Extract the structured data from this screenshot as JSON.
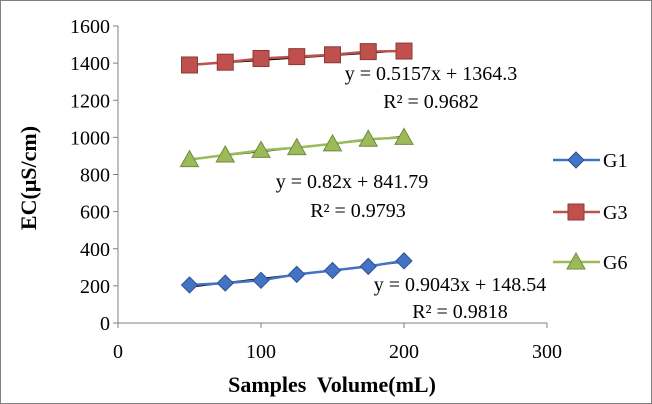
{
  "chart_data": {
    "type": "scatter",
    "xlabel": "Samples  Volume(mL)",
    "ylabel": "EC(μS/cm)",
    "xlim": [
      0,
      300
    ],
    "ylim": [
      0,
      1600
    ],
    "x_ticks": [
      0,
      100,
      200,
      300
    ],
    "y_ticks": [
      0,
      200,
      400,
      600,
      800,
      1000,
      1200,
      1400,
      1600
    ],
    "grid": false,
    "legend_position": "right",
    "series": [
      {
        "name": "G1",
        "color": "#4472C4",
        "marker": "diamond",
        "x": [
          50,
          75,
          100,
          125,
          150,
          175,
          200
        ],
        "y": [
          205,
          215,
          230,
          262,
          283,
          305,
          335
        ],
        "trendline": {
          "slope": 0.9043,
          "intercept": 148.54,
          "x_range": [
            50,
            200
          ]
        },
        "equation": "y = 0.9043x + 148.54",
        "r2": "R² = 0.9818"
      },
      {
        "name": "G3",
        "color": "#C0504D",
        "marker": "square",
        "x": [
          50,
          75,
          100,
          125,
          150,
          175,
          200
        ],
        "y": [
          1390,
          1405,
          1425,
          1435,
          1445,
          1462,
          1465
        ],
        "trendline": {
          "slope": 0.5157,
          "intercept": 1364.3,
          "x_range": [
            50,
            200
          ]
        },
        "equation": "y = 0.5157x + 1364.3",
        "r2": "R² = 0.9682"
      },
      {
        "name": "G6",
        "color": "#9BBB59",
        "marker": "triangle",
        "x": [
          50,
          75,
          100,
          125,
          150,
          175,
          200
        ],
        "y": [
          880,
          905,
          930,
          945,
          965,
          990,
          1000
        ],
        "trendline": {
          "slope": 0.82,
          "intercept": 841.79,
          "x_range": [
            50,
            200
          ]
        },
        "equation": "y = 0.82x + 841.79",
        "r2": "R² = 0.9793"
      }
    ]
  }
}
